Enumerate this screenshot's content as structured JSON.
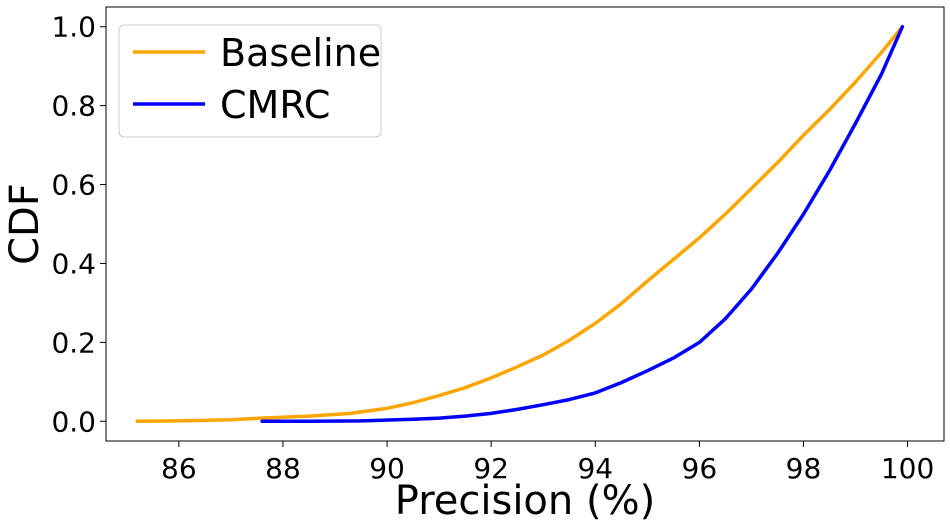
{
  "chart_data": {
    "type": "line",
    "xlabel": "Precision (%)",
    "ylabel": "CDF",
    "xlim": [
      84.6,
      100.7
    ],
    "ylim": [
      -0.05,
      1.05
    ],
    "xticks": [
      "86",
      "88",
      "90",
      "92",
      "94",
      "96",
      "98",
      "100"
    ],
    "yticks": [
      "0.0",
      "0.2",
      "0.4",
      "0.6",
      "0.8",
      "1.0"
    ],
    "grid": false,
    "legend_position": "top-left",
    "series": [
      {
        "name": "Baseline",
        "color": "#FFA500",
        "x": [
          85.2,
          86.0,
          87.0,
          87.6,
          88.5,
          89.3,
          90.0,
          90.5,
          91.0,
          91.5,
          92.0,
          92.5,
          93.0,
          93.5,
          94.0,
          94.5,
          95.0,
          95.5,
          96.0,
          96.5,
          97.0,
          97.5,
          98.0,
          98.5,
          99.0,
          99.5,
          99.9
        ],
        "y": [
          0.0,
          0.001,
          0.004,
          0.008,
          0.013,
          0.02,
          0.033,
          0.047,
          0.065,
          0.085,
          0.11,
          0.138,
          0.168,
          0.205,
          0.248,
          0.298,
          0.355,
          0.41,
          0.465,
          0.525,
          0.59,
          0.655,
          0.725,
          0.79,
          0.86,
          0.935,
          1.0
        ]
      },
      {
        "name": "CMRC",
        "color": "#0000FF",
        "x": [
          87.6,
          88.5,
          89.5,
          90.5,
          91.0,
          91.5,
          92.0,
          92.5,
          93.0,
          93.5,
          94.0,
          94.5,
          95.0,
          95.5,
          96.0,
          96.5,
          97.0,
          97.5,
          98.0,
          98.5,
          99.0,
          99.5,
          99.9
        ],
        "y": [
          0.0,
          0.0,
          0.001,
          0.005,
          0.008,
          0.013,
          0.02,
          0.03,
          0.042,
          0.055,
          0.072,
          0.098,
          0.128,
          0.16,
          0.2,
          0.26,
          0.335,
          0.425,
          0.525,
          0.635,
          0.755,
          0.88,
          1.0
        ]
      }
    ]
  }
}
